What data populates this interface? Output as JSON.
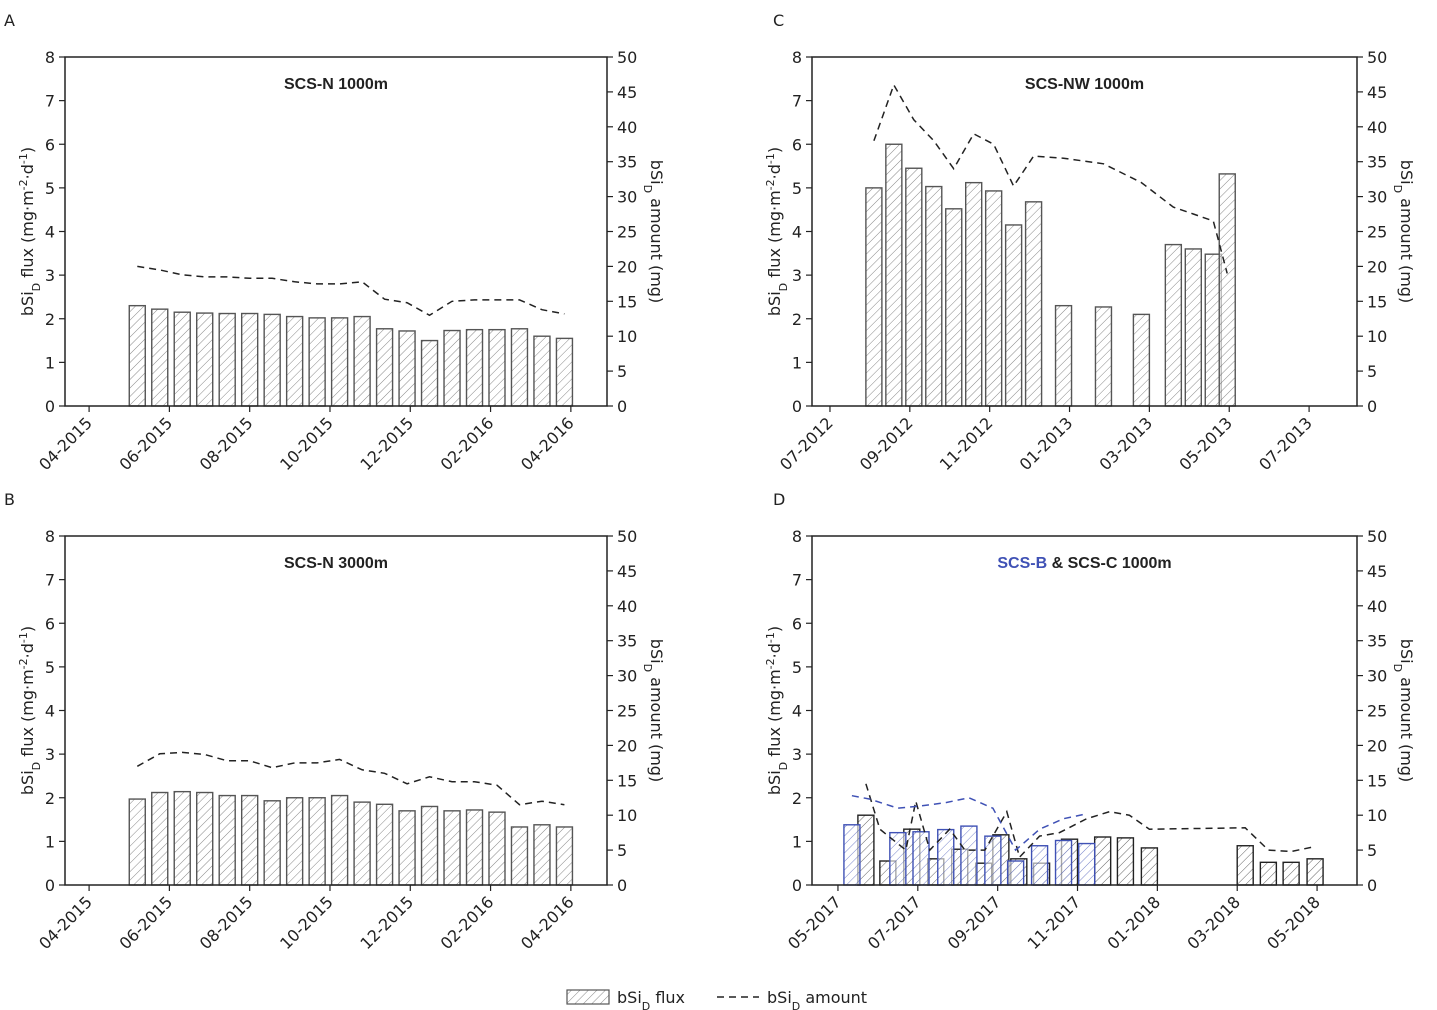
{
  "chart_data": [
    {
      "type": "bar",
      "panel": "A",
      "title": [
        {
          "text": "SCS-N 1000m"
        }
      ],
      "ylabel": [
        {
          "text": "bSi"
        },
        {
          "text": "D",
          "shift": "sub"
        },
        {
          "text": " flux (mg·m"
        },
        {
          "text": "-2",
          "shift": "super"
        },
        {
          "text": "·d"
        },
        {
          "text": "-1",
          "shift": "super"
        },
        {
          "text": ")"
        }
      ],
      "y2label": [
        {
          "text": "bSi"
        },
        {
          "text": "D",
          "shift": "sub"
        },
        {
          "text": " amount (mg)"
        }
      ],
      "xlim": [
        -0.6,
        12.9
      ],
      "xticks": [
        {
          "value": 0,
          "label": "04-2015"
        },
        {
          "value": 2,
          "label": "06-2015"
        },
        {
          "value": 4,
          "label": "08-2015"
        },
        {
          "value": 6,
          "label": "10-2015"
        },
        {
          "value": 8,
          "label": "12-2015"
        },
        {
          "value": 10,
          "label": "02-2016"
        },
        {
          "value": 12,
          "label": "04-2016"
        }
      ],
      "ylim": [
        0,
        8
      ],
      "yticks": [
        0,
        1,
        2,
        3,
        4,
        5,
        6,
        7,
        8
      ],
      "y2lim": [
        0,
        50
      ],
      "y2ticks": [
        0,
        5,
        10,
        15,
        20,
        25,
        30,
        35,
        40,
        45,
        50
      ],
      "series": [
        {
          "style": "bars",
          "color": "#555555",
          "x": [
            1.2,
            1.76,
            2.32,
            2.88,
            3.44,
            4.0,
            4.56,
            5.12,
            5.68,
            6.24,
            6.8,
            7.36,
            7.92,
            8.48,
            9.04,
            9.6,
            10.16,
            10.72,
            11.28,
            11.84
          ],
          "values": [
            2.3,
            2.22,
            2.15,
            2.13,
            2.12,
            2.12,
            2.1,
            2.05,
            2.02,
            2.02,
            2.05,
            1.77,
            1.72,
            1.5,
            1.73,
            1.75,
            1.75,
            1.77,
            1.6,
            1.55
          ]
        },
        {
          "style": "dashed",
          "color": "#222222",
          "axis": "y2",
          "x": [
            1.2,
            1.76,
            2.32,
            2.88,
            3.44,
            4.0,
            4.56,
            5.12,
            5.68,
            6.24,
            6.8,
            7.36,
            7.92,
            8.48,
            9.04,
            9.6,
            10.16,
            10.72,
            11.28,
            11.84
          ],
          "values": [
            20,
            19.5,
            18.8,
            18.5,
            18.5,
            18.3,
            18.3,
            17.8,
            17.5,
            17.5,
            17.8,
            15.3,
            14.8,
            13,
            15,
            15.2,
            15.2,
            15.2,
            13.8,
            13.2
          ]
        }
      ]
    },
    {
      "type": "bar",
      "panel": "B",
      "title": [
        {
          "text": "SCS-N 3000m"
        }
      ],
      "ylabel": [
        {
          "text": "bSi"
        },
        {
          "text": "D",
          "shift": "sub"
        },
        {
          "text": " flux (mg·m"
        },
        {
          "text": "-2",
          "shift": "super"
        },
        {
          "text": "·d"
        },
        {
          "text": "-1",
          "shift": "super"
        },
        {
          "text": ")"
        }
      ],
      "y2label": [
        {
          "text": "bSi"
        },
        {
          "text": "D",
          "shift": "sub"
        },
        {
          "text": " amount (mg)"
        }
      ],
      "xlim": [
        -0.6,
        12.9
      ],
      "xticks": [
        {
          "value": 0,
          "label": "04-2015"
        },
        {
          "value": 2,
          "label": "06-2015"
        },
        {
          "value": 4,
          "label": "08-2015"
        },
        {
          "value": 6,
          "label": "10-2015"
        },
        {
          "value": 8,
          "label": "12-2015"
        },
        {
          "value": 10,
          "label": "02-2016"
        },
        {
          "value": 12,
          "label": "04-2016"
        }
      ],
      "ylim": [
        0,
        8
      ],
      "yticks": [
        0,
        1,
        2,
        3,
        4,
        5,
        6,
        7,
        8
      ],
      "y2lim": [
        0,
        50
      ],
      "y2ticks": [
        0,
        5,
        10,
        15,
        20,
        25,
        30,
        35,
        40,
        45,
        50
      ],
      "series": [
        {
          "style": "bars",
          "color": "#555555",
          "x": [
            1.2,
            1.76,
            2.32,
            2.88,
            3.44,
            4.0,
            4.56,
            5.12,
            5.68,
            6.24,
            6.8,
            7.36,
            7.92,
            8.48,
            9.04,
            9.6,
            10.16,
            10.72,
            11.28,
            11.84
          ],
          "values": [
            1.97,
            2.12,
            2.14,
            2.12,
            2.05,
            2.05,
            1.93,
            2.0,
            2.0,
            2.05,
            1.9,
            1.85,
            1.7,
            1.8,
            1.7,
            1.72,
            1.67,
            1.33,
            1.38,
            1.33
          ]
        },
        {
          "style": "dashed",
          "color": "#222222",
          "axis": "y2",
          "x": [
            1.2,
            1.76,
            2.32,
            2.88,
            3.44,
            4.0,
            4.56,
            5.12,
            5.68,
            6.24,
            6.8,
            7.36,
            7.92,
            8.48,
            9.04,
            9.6,
            10.16,
            10.72,
            11.28,
            11.84
          ],
          "values": [
            17,
            18.8,
            19,
            18.7,
            17.8,
            17.8,
            16.8,
            17.5,
            17.5,
            18,
            16.5,
            16,
            14.5,
            15.5,
            14.8,
            14.8,
            14.3,
            11.5,
            12,
            11.5
          ]
        }
      ]
    },
    {
      "type": "bar",
      "panel": "C",
      "title": [
        {
          "text": "SCS-NW 1000m"
        }
      ],
      "ylabel": [
        {
          "text": "bSi"
        },
        {
          "text": "D",
          "shift": "sub"
        },
        {
          "text": " flux (mg·m"
        },
        {
          "text": "-2",
          "shift": "super"
        },
        {
          "text": "·d"
        },
        {
          "text": "-1",
          "shift": "super"
        },
        {
          "text": ")"
        }
      ],
      "y2label": [
        {
          "text": "bSi"
        },
        {
          "text": "D",
          "shift": "sub"
        },
        {
          "text": " amount (mg)"
        }
      ],
      "xlim": [
        -0.45,
        13.2
      ],
      "xticks": [
        {
          "value": 0,
          "label": "07-2012"
        },
        {
          "value": 2,
          "label": "09-2012"
        },
        {
          "value": 4,
          "label": "11-2012"
        },
        {
          "value": 6,
          "label": "01-2013"
        },
        {
          "value": 8,
          "label": "03-2013"
        },
        {
          "value": 10,
          "label": "05-2013"
        },
        {
          "value": 12,
          "label": "07-2013"
        }
      ],
      "ylim": [
        0,
        8
      ],
      "yticks": [
        0,
        1,
        2,
        3,
        4,
        5,
        6,
        7,
        8
      ],
      "y2lim": [
        0,
        50
      ],
      "y2ticks": [
        0,
        5,
        10,
        15,
        20,
        25,
        30,
        35,
        40,
        45,
        50
      ],
      "series": [
        {
          "style": "bars",
          "color": "#555555",
          "x": [
            1.1,
            1.6,
            2.1,
            2.6,
            3.1,
            3.6,
            4.1,
            4.6,
            5.1,
            5.85,
            6.85,
            7.8,
            8.6,
            9.1,
            9.6,
            9.95
          ],
          "values": [
            5.0,
            6.0,
            5.45,
            5.03,
            4.52,
            5.12,
            4.93,
            4.15,
            4.68,
            2.3,
            2.27,
            2.1,
            3.7,
            3.6,
            3.48,
            5.32
          ]
        },
        {
          "style": "dashed",
          "color": "#222222",
          "axis": "y2",
          "x": [
            1.1,
            1.6,
            2.1,
            2.6,
            3.1,
            3.6,
            4.1,
            4.6,
            5.1,
            5.85,
            6.85,
            7.8,
            8.6,
            9.1,
            9.6,
            9.95
          ],
          "values": [
            38,
            46,
            41,
            38,
            34,
            39,
            37.5,
            31.5,
            35.8,
            35.5,
            34.7,
            32,
            28.5,
            27.5,
            26.5,
            19
          ]
        }
      ]
    },
    {
      "type": "bar",
      "panel": "D",
      "title": [
        {
          "text": "SCS-B",
          "color": "#3f51b5"
        },
        {
          "text": " & SCS-C 1000m"
        }
      ],
      "ylabel": [
        {
          "text": "bSi"
        },
        {
          "text": "D",
          "shift": "sub"
        },
        {
          "text": " flux (mg·m"
        },
        {
          "text": "-2",
          "shift": "super"
        },
        {
          "text": "·d"
        },
        {
          "text": "-1",
          "shift": "super"
        },
        {
          "text": ")"
        }
      ],
      "y2label": [
        {
          "text": "bSi"
        },
        {
          "text": "D",
          "shift": "sub"
        },
        {
          "text": " amount (mg)"
        }
      ],
      "xlim": [
        -0.65,
        13
      ],
      "xticks": [
        {
          "value": 0,
          "label": "05-2017"
        },
        {
          "value": 2,
          "label": "07-2017"
        },
        {
          "value": 4,
          "label": "09-2017"
        },
        {
          "value": 6,
          "label": "11-2017"
        },
        {
          "value": 8,
          "label": "01-2018"
        },
        {
          "value": 10,
          "label": "03-2018"
        },
        {
          "value": 12,
          "label": "05-2018"
        }
      ],
      "ylim": [
        0,
        8
      ],
      "yticks": [
        0,
        1,
        2,
        3,
        4,
        5,
        6,
        7,
        8
      ],
      "y2lim": [
        0,
        50
      ],
      "y2ticks": [
        0,
        5,
        10,
        15,
        20,
        25,
        30,
        35,
        40,
        45,
        50
      ],
      "series": [
        {
          "style": "bars",
          "color": "#222222",
          "x": [
            0.7,
            1.25,
            1.85,
            2.45,
            3.05,
            3.65,
            4.08,
            4.53,
            5.1,
            5.8,
            6.63,
            7.2,
            7.8,
            10.2,
            10.78,
            11.35,
            11.95
          ],
          "values": [
            1.6,
            0.55,
            1.28,
            0.6,
            0.82,
            0.5,
            1.15,
            0.6,
            0.5,
            1.05,
            1.1,
            1.08,
            0.85,
            0.9,
            0.52,
            0.52,
            0.6
          ]
        },
        {
          "style": "bars",
          "color": "#3f51b5",
          "x": [
            0.35,
            1.5,
            2.08,
            2.7,
            3.28,
            3.88,
            4.45,
            5.05,
            5.65,
            6.23
          ],
          "values": [
            1.38,
            1.2,
            1.22,
            1.27,
            1.35,
            1.12,
            0.55,
            0.9,
            1.02,
            0.95
          ]
        },
        {
          "style": "dashed",
          "color": "#222222",
          "axis": "y2",
          "x": [
            0.7,
            1.05,
            1.7,
            1.95,
            2.3,
            2.8,
            3.18,
            3.68,
            4.23,
            4.55,
            5.05,
            5.55,
            6.23,
            6.8,
            7.3,
            7.8,
            10.2,
            10.78,
            11.35,
            11.95
          ],
          "values": [
            14.5,
            8,
            5,
            12,
            5,
            8,
            5,
            5,
            10.5,
            4,
            7,
            7.5,
            9.5,
            10.5,
            10,
            8,
            8.2,
            5,
            4.8,
            5.5
          ]
        },
        {
          "style": "dashed",
          "color": "#3f51b5",
          "axis": "y2",
          "x": [
            0.35,
            0.8,
            1.5,
            2.05,
            2.7,
            3.28,
            3.88,
            4.45,
            5.05,
            5.65,
            6.23
          ],
          "values": [
            12.8,
            12.3,
            11,
            11.3,
            11.8,
            12.5,
            11,
            5,
            8,
            9.5,
            10.2
          ]
        }
      ]
    }
  ],
  "legend": [
    {
      "style": "bars",
      "color": "#555555",
      "parts": [
        {
          "text": "bSi"
        },
        {
          "text": "D",
          "shift": "sub"
        },
        {
          "text": " flux"
        }
      ]
    },
    {
      "style": "dashed",
      "color": "#222222",
      "parts": [
        {
          "text": "bSi"
        },
        {
          "text": "D",
          "shift": "sub"
        },
        {
          "text": " amount"
        }
      ]
    }
  ]
}
